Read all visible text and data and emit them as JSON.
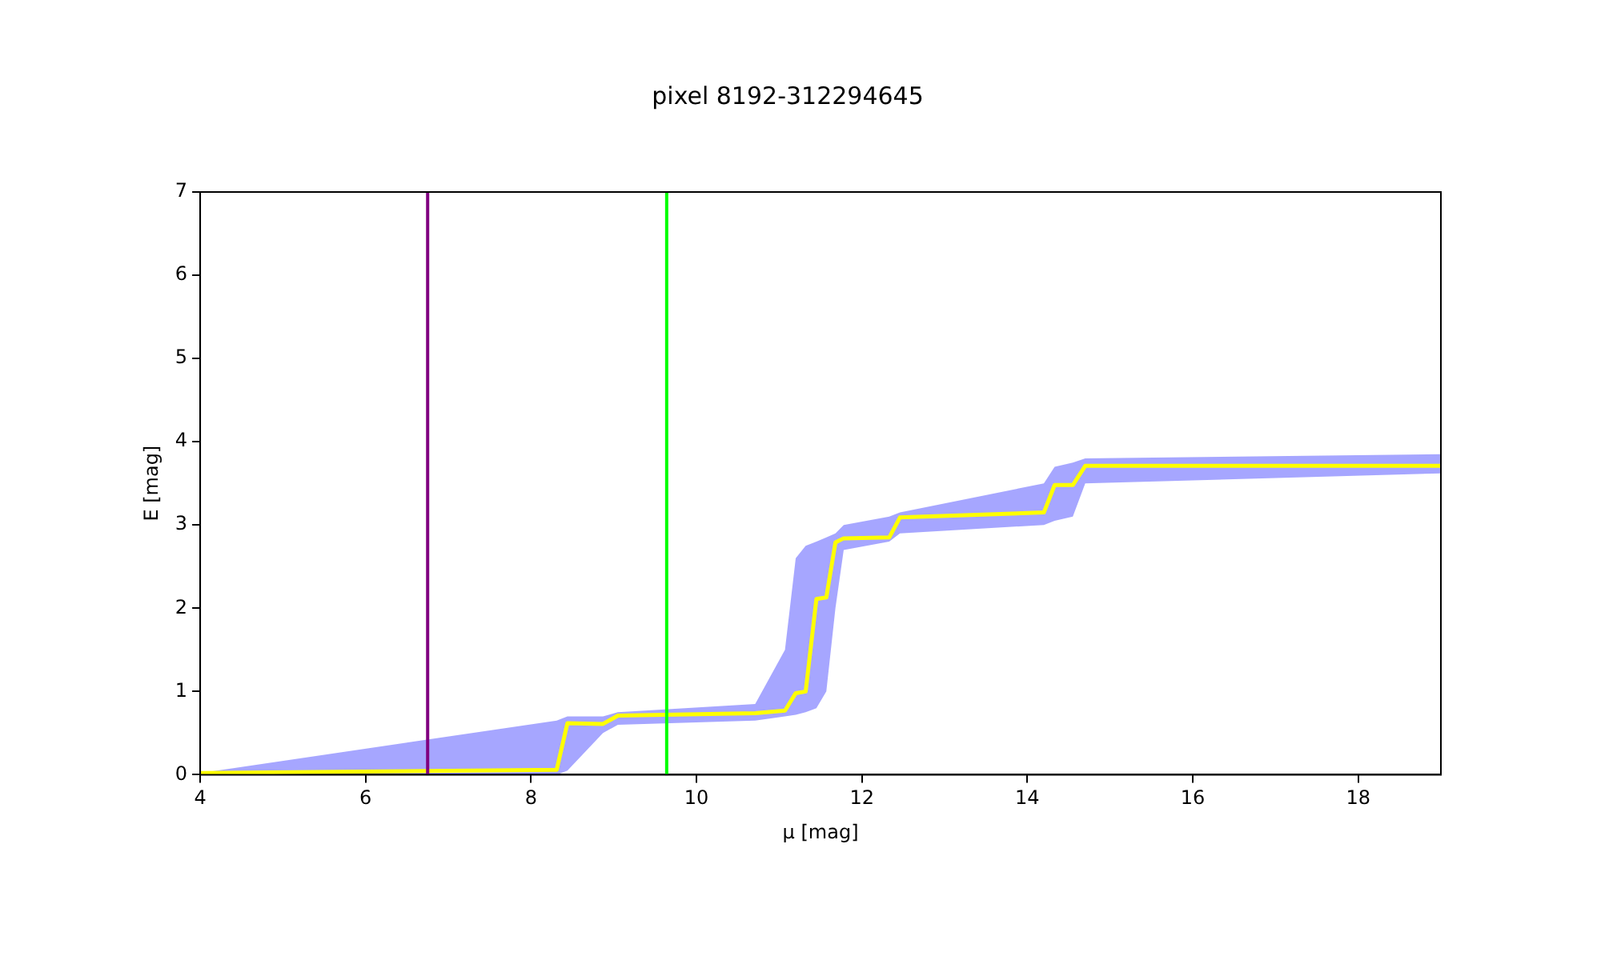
{
  "chart_data": {
    "type": "line",
    "title": "pixel 8192-312294645",
    "xlabel": "μ [mag]",
    "ylabel": "E [mag]",
    "xlim": [
      4,
      19
    ],
    "xticks": [
      4,
      6,
      8,
      10,
      12,
      14,
      16,
      18
    ],
    "ylim": [
      0,
      7
    ],
    "yticks": [
      0,
      1,
      2,
      3,
      4,
      5,
      6,
      7
    ],
    "grid": false,
    "legend": false,
    "marker": "none",
    "line_style": "solid",
    "series": [
      {
        "color": "#ffff00",
        "x": [
          4,
          8.31,
          8.44,
          8.87,
          9.05,
          10.71,
          11.07,
          11.2,
          11.32,
          11.45,
          11.57,
          11.68,
          11.78,
          12.33,
          12.46,
          14.2,
          14.33,
          14.55,
          14.7,
          19
        ],
        "values": [
          0.02,
          0.06,
          0.62,
          0.61,
          0.71,
          0.74,
          0.77,
          0.98,
          1.0,
          2.11,
          2.13,
          2.79,
          2.84,
          2.85,
          3.09,
          3.15,
          3.48,
          3.48,
          3.71,
          3.71
        ],
        "lower": [
          0,
          0,
          0.05,
          0.5,
          0.6,
          0.65,
          0.7,
          0.72,
          0.75,
          0.8,
          1.0,
          2.0,
          2.7,
          2.8,
          2.9,
          3.0,
          3.05,
          3.1,
          3.5,
          3.62
        ],
        "upper": [
          0.02,
          0.65,
          0.7,
          0.7,
          0.75,
          0.85,
          1.5,
          2.6,
          2.75,
          2.8,
          2.85,
          2.9,
          3.0,
          3.1,
          3.15,
          3.5,
          3.7,
          3.75,
          3.8,
          3.85
        ]
      }
    ],
    "ref_lines": [
      {
        "axis": "x",
        "value": 6.75,
        "color": "#800080"
      },
      {
        "axis": "x",
        "value": 9.64,
        "color": "#00ff00"
      }
    ]
  }
}
